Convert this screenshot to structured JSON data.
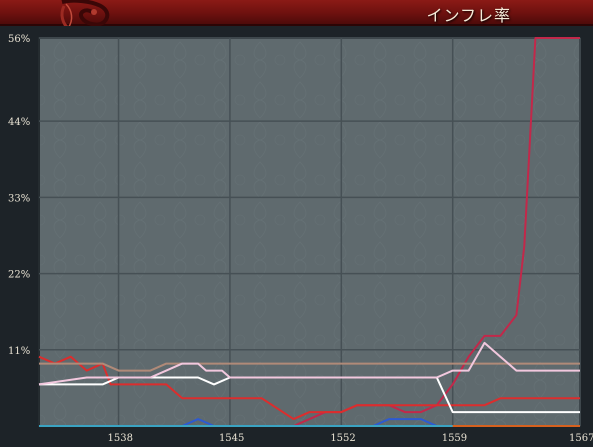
{
  "window": {
    "title": "インフレ率"
  },
  "colors": {
    "header": "#7d1512",
    "plot_bg": "#5f6a6e",
    "grid": "#465055",
    "axis_text": "#e8e2d3"
  },
  "chart_data": {
    "type": "line",
    "title": "インフレ率",
    "xlabel": "",
    "ylabel": "",
    "xlim": [
      1533,
      1567
    ],
    "ylim": [
      0,
      56
    ],
    "x_ticks": [
      "1538",
      "1545",
      "1552",
      "1559",
      "1567"
    ],
    "y_ticks": [
      "56%",
      "44%",
      "33%",
      "22%",
      "11%"
    ],
    "y_tick_values": [
      56,
      44,
      33,
      22,
      11
    ],
    "x_tick_values": [
      1538,
      1545,
      1552,
      1559,
      1567
    ],
    "grid": true,
    "series": [
      {
        "color": "#c2284a",
        "points": [
          [
            1533,
            0
          ],
          [
            1549,
            0
          ],
          [
            1550,
            1
          ],
          [
            1551,
            2
          ],
          [
            1552,
            2
          ],
          [
            1553,
            3
          ],
          [
            1554,
            3
          ],
          [
            1555,
            3
          ],
          [
            1556,
            2
          ],
          [
            1557,
            2
          ],
          [
            1558,
            3
          ],
          [
            1559,
            6
          ],
          [
            1560,
            10
          ],
          [
            1561,
            13
          ],
          [
            1562,
            13
          ],
          [
            1563,
            16
          ],
          [
            1563.5,
            26
          ],
          [
            1564.2,
            56
          ],
          [
            1567,
            56
          ]
        ]
      },
      {
        "color": "#dc2d2d",
        "points": [
          [
            1533,
            10
          ],
          [
            1534,
            9
          ],
          [
            1535,
            10
          ],
          [
            1536,
            8
          ],
          [
            1537,
            9
          ],
          [
            1537.5,
            6
          ],
          [
            1541,
            6
          ],
          [
            1542,
            4
          ],
          [
            1546,
            4
          ],
          [
            1547,
            4
          ],
          [
            1549,
            1
          ],
          [
            1550,
            2
          ],
          [
            1552,
            2
          ],
          [
            1553,
            3
          ],
          [
            1555,
            3
          ],
          [
            1556,
            3
          ],
          [
            1558,
            3
          ],
          [
            1559,
            3
          ],
          [
            1561,
            3
          ],
          [
            1562,
            4
          ],
          [
            1567,
            4
          ]
        ]
      },
      {
        "color": "#b08a78",
        "points": [
          [
            1533,
            9
          ],
          [
            1537,
            9
          ],
          [
            1538,
            8
          ],
          [
            1540,
            8
          ],
          [
            1541,
            9
          ],
          [
            1567,
            9
          ]
        ]
      },
      {
        "color": "#ffffff",
        "points": [
          [
            1533,
            6
          ],
          [
            1537,
            6
          ],
          [
            1538,
            7
          ],
          [
            1543,
            7
          ],
          [
            1544,
            6
          ],
          [
            1545,
            7
          ],
          [
            1558,
            7
          ],
          [
            1559,
            2
          ],
          [
            1567,
            2
          ]
        ]
      },
      {
        "color": "#f2c8de",
        "points": [
          [
            1533,
            6
          ],
          [
            1536,
            7
          ],
          [
            1540,
            7
          ],
          [
            1541,
            8
          ],
          [
            1542,
            9
          ],
          [
            1543,
            9
          ],
          [
            1543.5,
            8
          ],
          [
            1544.5,
            8
          ],
          [
            1545,
            7
          ],
          [
            1558,
            7
          ],
          [
            1559,
            8
          ],
          [
            1560,
            8
          ],
          [
            1561,
            12
          ],
          [
            1562,
            10
          ],
          [
            1563,
            8
          ],
          [
            1567,
            8
          ]
        ]
      },
      {
        "color": "#2d5ad2",
        "points": [
          [
            1533,
            0
          ],
          [
            1542,
            0
          ],
          [
            1543,
            1
          ],
          [
            1544,
            0
          ],
          [
            1554,
            0
          ],
          [
            1555,
            1
          ],
          [
            1556,
            1
          ],
          [
            1557,
            1
          ],
          [
            1558,
            0
          ],
          [
            1567,
            0
          ]
        ]
      },
      {
        "color": "#3aa3c2",
        "points": [
          [
            1533,
            0
          ],
          [
            1567,
            0
          ]
        ]
      },
      {
        "color": "#d6601e",
        "points": [
          [
            1559,
            0
          ],
          [
            1567,
            0
          ]
        ]
      }
    ]
  }
}
